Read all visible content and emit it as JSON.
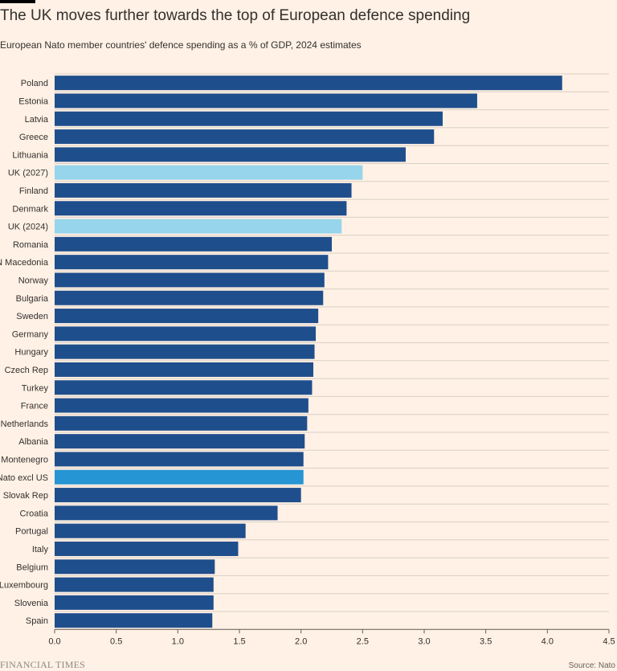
{
  "header": {
    "title": "The UK moves further towards the top of European defence spending",
    "subtitle": "European Nato member countries' defence spending as a % of GDP, 2024 estimates"
  },
  "footer": {
    "brand": "FINANCIAL TIMES",
    "source": "Source: Nato"
  },
  "colors": {
    "background": "#fff1e5",
    "default_bar": "#1f4e8c",
    "uk_bar": "#96d5eb",
    "nato_bar": "#2595d3",
    "grid": "#d8cfc6",
    "axis": "#66605c",
    "text": "#33302e"
  },
  "chart_data": {
    "type": "bar",
    "orientation": "horizontal",
    "title": "The UK moves further towards the top of European defence spending",
    "subtitle": "European Nato member countries' defence spending as a % of GDP, 2024 estimates",
    "xlabel": "",
    "ylabel": "",
    "xlim": [
      0,
      4.5
    ],
    "xticks": [
      0,
      0.5,
      1,
      1.5,
      2,
      2.5,
      3,
      3.5,
      4,
      4.5
    ],
    "xtick_labels": [
      "0.0",
      "0.5",
      "1.0",
      "1.5",
      "2.0",
      "2.5",
      "3.0",
      "3.5",
      "4.0",
      "4.5"
    ],
    "grid": true,
    "categories": [
      "Poland",
      "Estonia",
      "Latvia",
      "Greece",
      "Lithuania",
      "UK (2027)",
      "Finland",
      "Denmark",
      "UK (2024)",
      "Romania",
      "N Macedonia",
      "Norway",
      "Bulgaria",
      "Sweden",
      "Germany",
      "Hungary",
      "Czech Rep",
      "Turkey",
      "France",
      "Netherlands",
      "Albania",
      "Montenegro",
      "Nato excl US",
      "Slovak Rep",
      "Croatia",
      "Portugal",
      "Italy",
      "Belgium",
      "Luxembourg",
      "Slovenia",
      "Spain"
    ],
    "values": [
      4.12,
      3.43,
      3.15,
      3.08,
      2.85,
      2.5,
      2.41,
      2.37,
      2.33,
      2.25,
      2.22,
      2.19,
      2.18,
      2.14,
      2.12,
      2.11,
      2.1,
      2.09,
      2.06,
      2.05,
      2.03,
      2.02,
      2.02,
      2.0,
      1.81,
      1.55,
      1.49,
      1.3,
      1.29,
      1.29,
      1.28
    ],
    "highlight": {
      "UK (2027)": "uk",
      "UK (2024)": "uk",
      "Nato excl US": "nato"
    },
    "source": "Source: Nato"
  }
}
